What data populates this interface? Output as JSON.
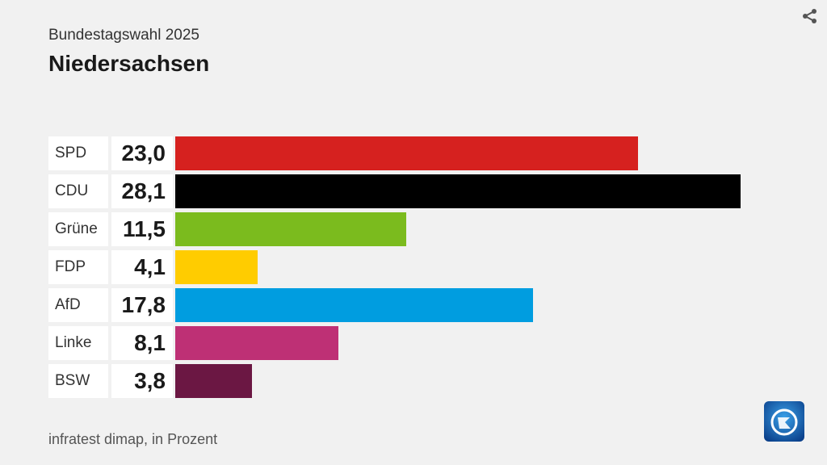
{
  "header": {
    "subtitle": "Bundestagswahl 2025",
    "title": "Niedersachsen"
  },
  "footer": {
    "source": "infratest dimap, in Prozent"
  },
  "icons": {
    "share": "share-icon",
    "logo": "tagesschau-logo"
  },
  "chart_data": {
    "type": "bar",
    "orientation": "horizontal",
    "title": "Niedersachsen",
    "subtitle": "Bundestagswahl 2025",
    "categories": [
      "SPD",
      "CDU",
      "Grüne",
      "FDP",
      "AfD",
      "Linke",
      "BSW"
    ],
    "values": [
      23.0,
      28.1,
      11.5,
      4.1,
      17.8,
      8.1,
      3.8
    ],
    "value_labels": [
      "23,0",
      "28,1",
      "11,5",
      "4,1",
      "17,8",
      "8,1",
      "3,8"
    ],
    "colors": [
      "#d6211f",
      "#000000",
      "#7bbb1e",
      "#ffcc00",
      "#009de0",
      "#be3075",
      "#6b1743"
    ],
    "xlim": [
      0,
      28.1
    ],
    "unit": "Prozent",
    "grid": false
  }
}
